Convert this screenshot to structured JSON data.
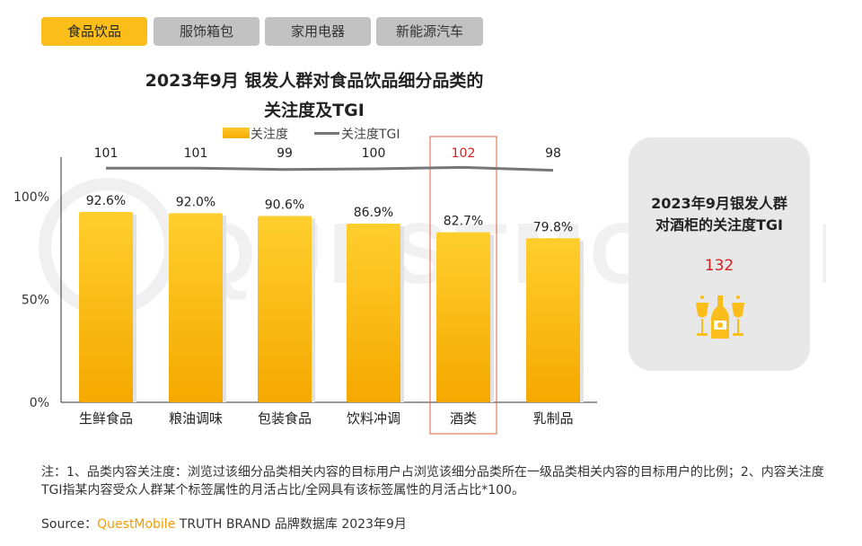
{
  "tabs": [
    {
      "label": "食品饮品",
      "active": true
    },
    {
      "label": "服饰箱包",
      "active": false
    },
    {
      "label": "家用电器",
      "active": false
    },
    {
      "label": "新能源汽车",
      "active": false
    }
  ],
  "chart_data": {
    "type": "bar",
    "title_line1": "2023年9月 银发人群对食品饮品细分品类的",
    "title_line2": "关注度及TGI",
    "categories": [
      "生鲜食品",
      "粮油调味",
      "包装食品",
      "饮料冲调",
      "酒类",
      "乳制品"
    ],
    "series": [
      {
        "name": "关注度",
        "values": [
          92.6,
          92.0,
          90.6,
          86.9,
          82.7,
          79.8
        ],
        "unit": "%",
        "color": "#fbbd1a"
      },
      {
        "name": "关注度TGI",
        "type": "line",
        "values": [
          101,
          101,
          99,
          100,
          102,
          98
        ],
        "color": "#777777"
      }
    ],
    "value_labels": [
      "92.6%",
      "92.0%",
      "90.6%",
      "86.9%",
      "82.7%",
      "79.8%"
    ],
    "tgi_labels": [
      "101",
      "101",
      "99",
      "100",
      "102",
      "98"
    ],
    "y_ticks": [
      "0%",
      "50%",
      "100%"
    ],
    "ylim": [
      0,
      100
    ],
    "highlight_category": "酒类",
    "highlight_color": "#d62020",
    "legend_position": "top"
  },
  "tgi_box": {
    "title_line1": "2023年9月银发人群",
    "title_line2": "对酒柜的关注度TGI",
    "value": "132",
    "icon": "wine-cabinet-icon"
  },
  "note": "注：1、品类内容关注度：浏览过该细分品类相关内容的目标用户占浏览该细分品类所在一级品类相关内容的目标用户的比例；2、内容关注度TGI指某内容受众人群某个标签属性的月活占比/全网具有该标签属性的月活占比*100。",
  "source": {
    "label": "Source：",
    "brand": "QuestMobile",
    "rest": " TRUTH BRAND 品牌数据库 2023年9月"
  },
  "watermark": "QUESTMOBILE"
}
